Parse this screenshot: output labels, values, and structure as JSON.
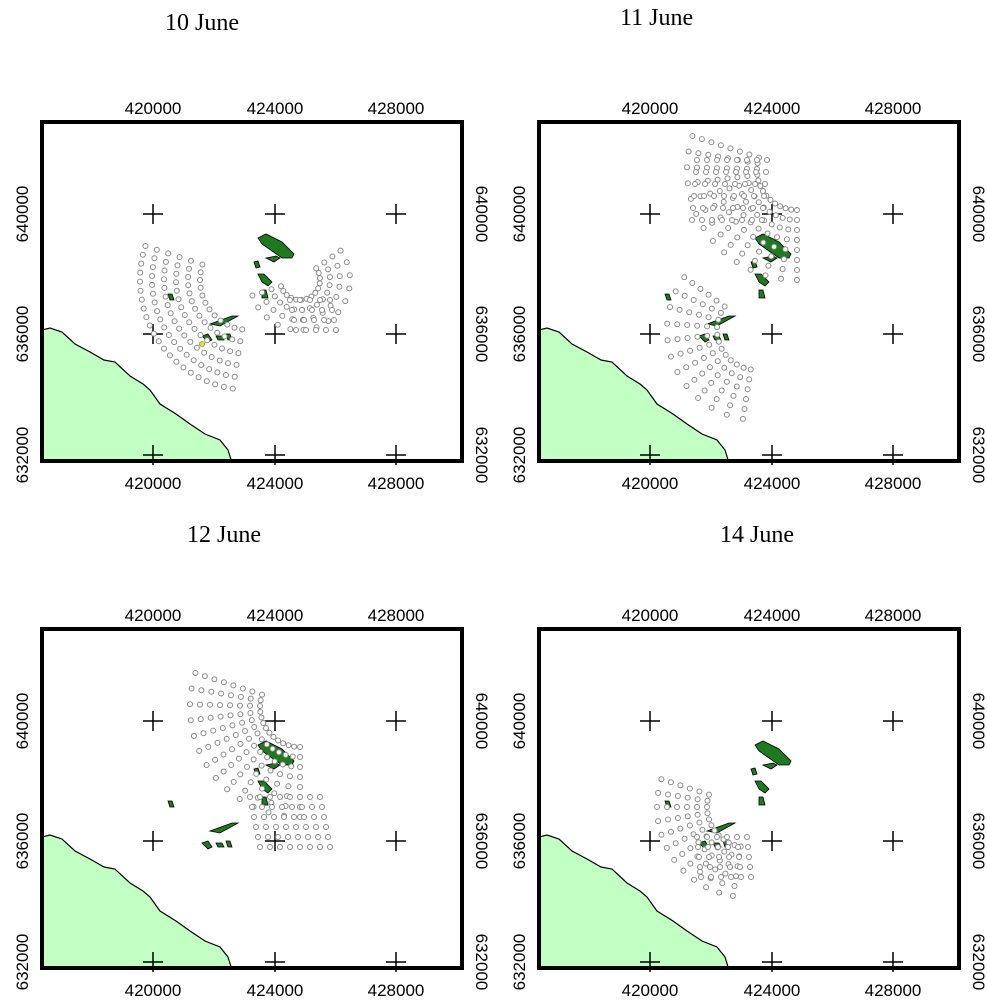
{
  "colors": {
    "land": "#c2ffc2",
    "island": "#1e7a1e",
    "point_stroke": "#8a8a8a",
    "frame": "#000000",
    "highlight": "#e8e800"
  },
  "axes": {
    "x_ticks": [
      "420000",
      "424000",
      "428000"
    ],
    "y_ticks": [
      "640000",
      "636000",
      "632000"
    ]
  },
  "panels": [
    {
      "id": "p10",
      "title": "10 June"
    },
    {
      "id": "p11",
      "title": "11 June"
    },
    {
      "id": "p12",
      "title": "12 June"
    },
    {
      "id": "p14",
      "title": "14 June"
    }
  ]
}
